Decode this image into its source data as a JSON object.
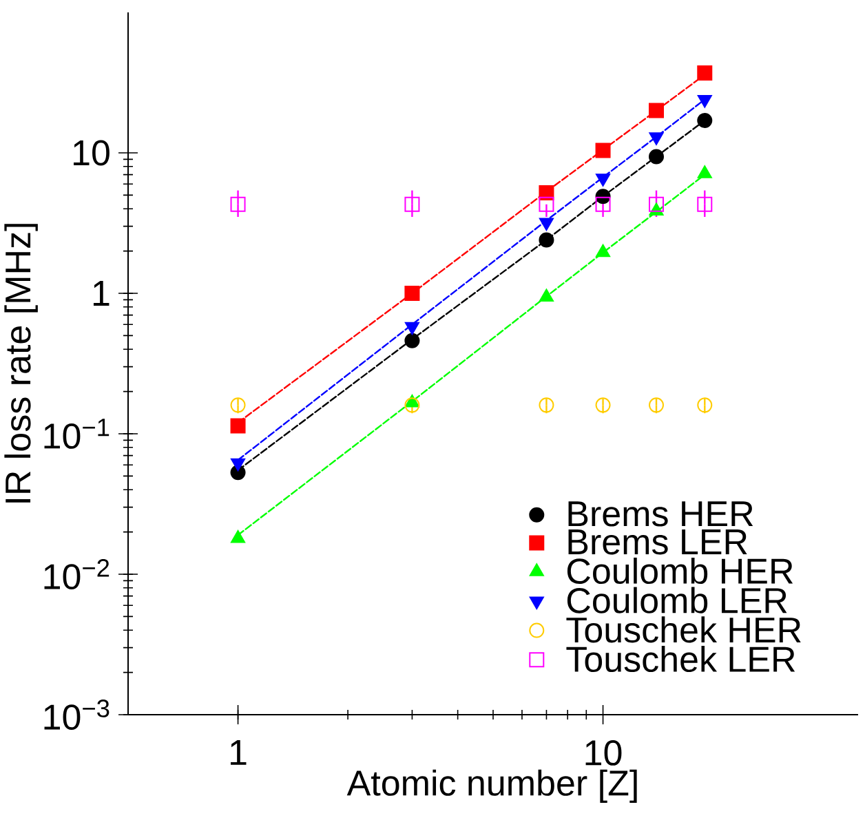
{
  "chart_data": {
    "type": "scatter",
    "xlabel": "Atomic number [Z]",
    "ylabel": "IR loss rate [MHz]",
    "log": "xy",
    "xlim": [
      0.5,
      50
    ],
    "ylim": [
      0.001,
      100
    ],
    "xticks": [
      1,
      10
    ],
    "yticks": [
      {
        "value": 0.001,
        "label": "10$^{−3}$"
      },
      {
        "value": 0.01,
        "label": "10$^{−2}$"
      },
      {
        "value": 0.1,
        "label": "10$^{−1}$"
      },
      1,
      10
    ],
    "x": [
      1,
      3,
      7,
      10,
      14,
      19
    ],
    "grid": false,
    "legend": "bottom right",
    "series": [
      {
        "name": "Brems HER",
        "color": "#000000",
        "marker": "circle",
        "values": [
          0.053,
          0.46,
          2.4,
          4.9,
          9.4,
          17
        ]
      },
      {
        "name": "Brems LER",
        "color": "#ff0000",
        "marker": "square",
        "values": [
          0.114,
          1.0,
          5.2,
          10.4,
          20,
          37
        ]
      },
      {
        "name": "Coulomb HER",
        "color": "#00ff00",
        "marker": "triangle",
        "values": [
          0.018,
          0.166,
          0.94,
          1.95,
          3.85,
          7.1
        ]
      },
      {
        "name": "Coulomb LER",
        "color": "#0000ff",
        "marker": "triangle_down",
        "values": [
          0.062,
          0.58,
          3.2,
          6.6,
          13,
          24
        ]
      },
      {
        "name": "Touschek HER",
        "color": "#ffcc00",
        "marker": "circle_open",
        "values": [
          0.16,
          0.16,
          0.16,
          0.16,
          0.16,
          0.16
        ],
        "errors": [
          [
            0.14,
            0.18
          ],
          [
            0.14,
            0.18
          ],
          [
            0.14,
            0.18
          ],
          [
            0.14,
            0.18
          ],
          [
            0.14,
            0.18
          ],
          [
            0.14,
            0.18
          ]
        ]
      },
      {
        "name": "Touschek LER",
        "color": "#ff00ff",
        "marker": "square_open",
        "values": [
          4.3,
          4.3,
          4.3,
          4.3,
          4.3,
          4.3
        ],
        "errors": [
          [
            3.5,
            5.4
          ],
          [
            3.5,
            5.4
          ],
          [
            3.5,
            4.3
          ],
          [
            3.5,
            5.4
          ],
          [
            3.5,
            5.4
          ],
          [
            3.5,
            5.4
          ]
        ]
      },
      {
        "type": "line",
        "color": "#000000",
        "marker": "none",
        "line_style": "dashed",
        "values": [
          0.055,
          0.47,
          2.4,
          4.9,
          9.4,
          17
        ]
      },
      {
        "type": "line",
        "color": "#ff0000",
        "marker": "none",
        "line_style": "dashed",
        "values": [
          0.12,
          1.0,
          5.3,
          10.5,
          20,
          36
        ]
      },
      {
        "type": "line",
        "color": "#0000ff",
        "marker": "none",
        "line_style": "dashed",
        "values": [
          0.065,
          0.6,
          3.3,
          6.7,
          13,
          24
        ]
      },
      {
        "type": "line",
        "color": "#00ff00",
        "marker": "none",
        "line_style": "dashed",
        "values": [
          0.019,
          0.17,
          0.95,
          1.95,
          3.8,
          7.0
        ]
      }
    ]
  }
}
